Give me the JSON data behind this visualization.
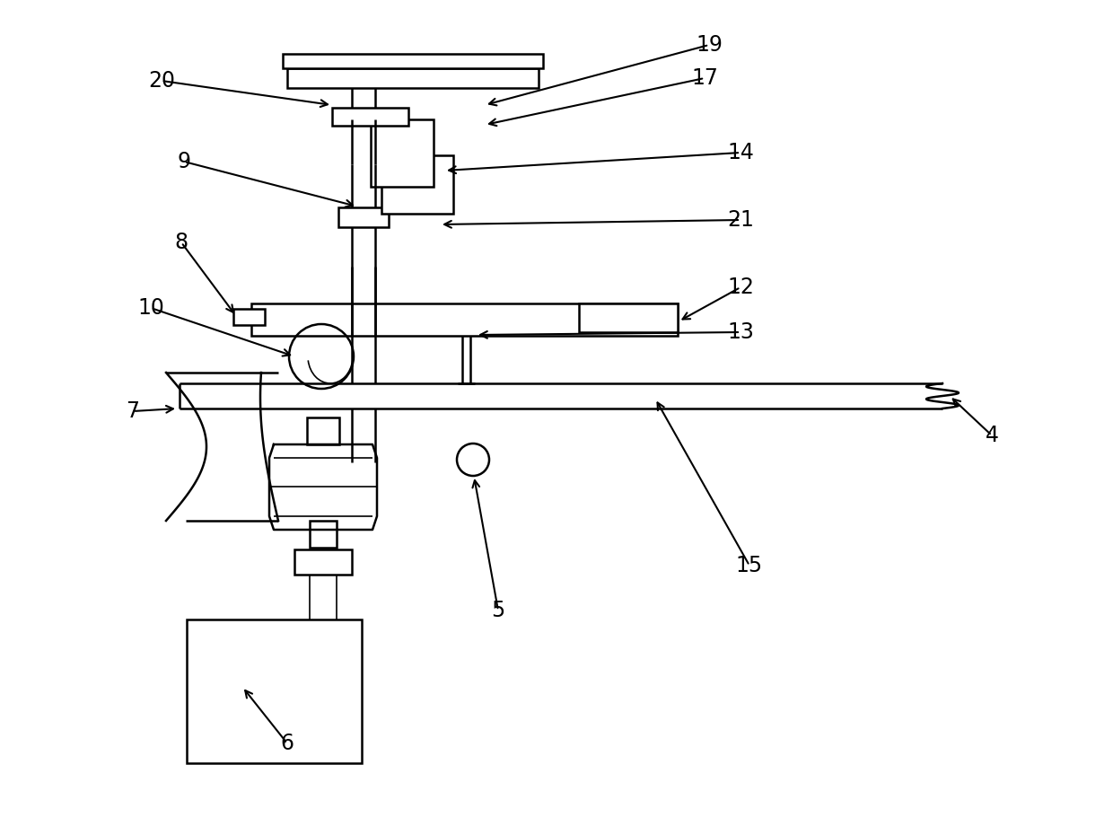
{
  "bg_color": "#ffffff",
  "line_color": "#000000",
  "lw": 1.8,
  "thin_lw": 1.2,
  "fs": 17
}
